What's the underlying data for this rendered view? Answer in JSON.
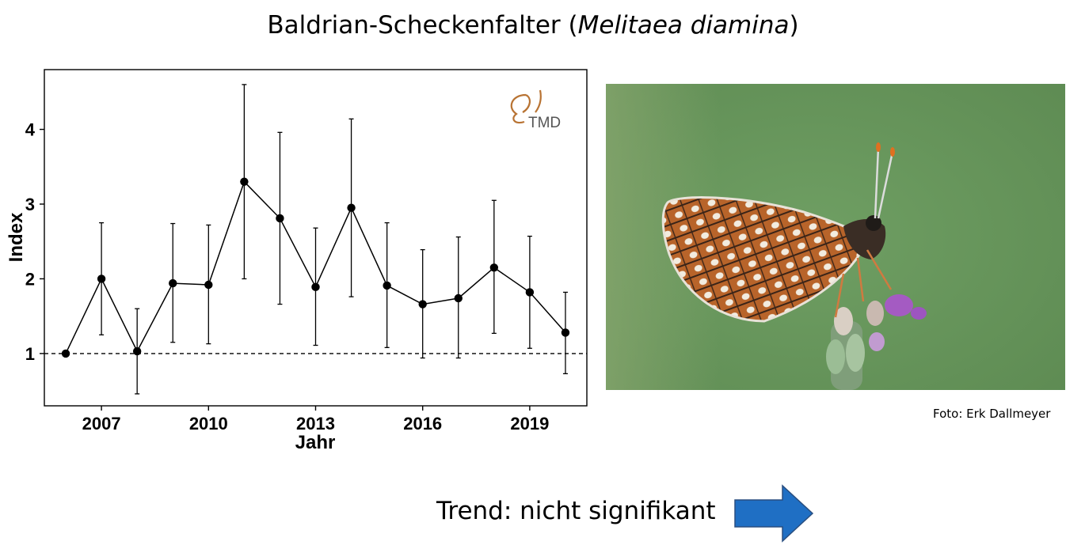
{
  "title": {
    "main": "Baldrian-Scheckenfalter (",
    "species": "Melitaea diamina",
    "close": ")"
  },
  "logo": {
    "text": "TMD",
    "color": "#b87333"
  },
  "photo_credit": "Foto: Erk Dallmeyer",
  "trend": {
    "label": "Trend: nicht signifikant",
    "arrow_color": "#1f6fc4",
    "arrow_direction": "right"
  },
  "chart_data": {
    "type": "line",
    "xlabel": "Jahr",
    "ylabel": "Index",
    "x": [
      2006,
      2007,
      2008,
      2009,
      2010,
      2011,
      2012,
      2013,
      2014,
      2015,
      2016,
      2017,
      2018,
      2019,
      2020
    ],
    "series": [
      {
        "values": [
          1.0,
          2.0,
          1.03,
          1.94,
          1.92,
          3.3,
          2.81,
          1.89,
          2.95,
          1.91,
          1.66,
          1.74,
          2.15,
          1.82,
          1.28
        ],
        "lower": [
          1.0,
          1.25,
          0.46,
          1.15,
          1.13,
          2.0,
          1.66,
          1.11,
          1.76,
          1.08,
          0.94,
          0.94,
          1.27,
          1.07,
          0.73
        ],
        "upper": [
          1.0,
          2.75,
          1.6,
          2.74,
          2.72,
          4.6,
          3.96,
          2.68,
          4.14,
          2.75,
          2.39,
          2.56,
          3.05,
          2.57,
          1.82
        ]
      }
    ],
    "reference_line": 1,
    "xticks": [
      2007,
      2010,
      2013,
      2016,
      2019
    ],
    "yticks": [
      1,
      2,
      3,
      4
    ],
    "xlim": [
      2005.4,
      2020.6
    ],
    "ylim": [
      0.3,
      4.8
    ],
    "grid": false,
    "legend": "none"
  }
}
